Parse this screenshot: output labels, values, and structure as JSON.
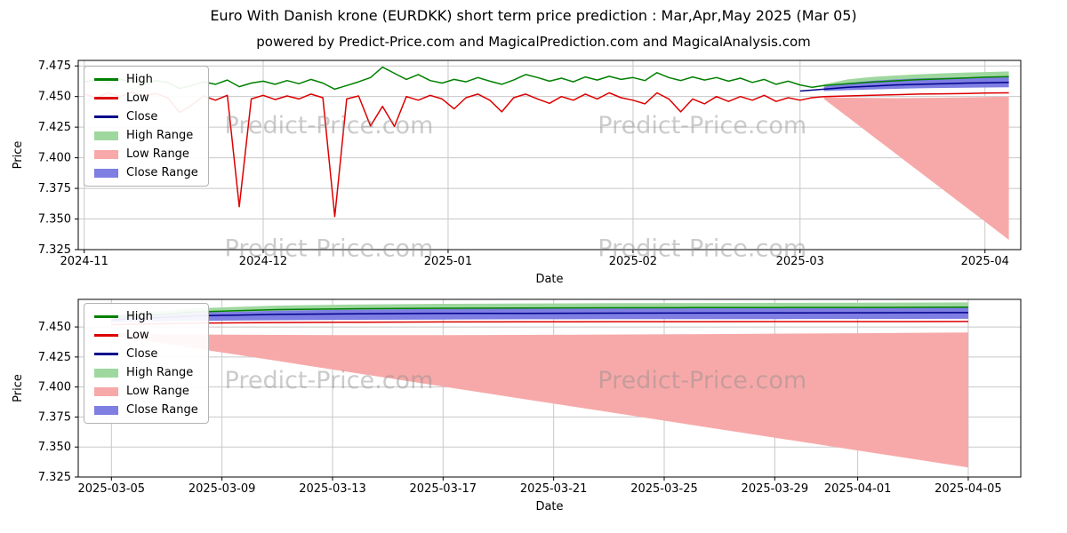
{
  "header": {
    "title": "Euro With Danish krone (EURDKK) short term price prediction : Mar,Apr,May 2025 (Mar 05)",
    "subtitle": "powered by Predict-Price.com and MagicalPrediction.com and MagicalAnalysis.com"
  },
  "watermark": {
    "text": "Predict-Price.com"
  },
  "colors": {
    "high": "#008000",
    "low": "#dd0000",
    "close": "#00008b",
    "high_range": "#9fd89f",
    "low_range": "#f7a9a9",
    "close_range": "#7e7ee3",
    "grid": "#c8c8c8",
    "axis": "#000000",
    "watermark": "#8c8c8c"
  },
  "legend": {
    "items": [
      {
        "label": "High",
        "key": "high",
        "type": "line"
      },
      {
        "label": "Low",
        "key": "low",
        "type": "line"
      },
      {
        "label": "Close",
        "key": "close",
        "type": "line"
      },
      {
        "label": "High Range",
        "key": "high_range",
        "type": "band"
      },
      {
        "label": "Low Range",
        "key": "low_range",
        "type": "band"
      },
      {
        "label": "Close Range",
        "key": "close_range",
        "type": "band"
      }
    ]
  },
  "chart_data": [
    {
      "type": "line",
      "title": "EURDKK history with forecast ranges",
      "xlabel": "Date",
      "ylabel": "Price",
      "xlim": [
        -1,
        157
      ],
      "ylim": [
        7.325,
        7.4795
      ],
      "grid": true,
      "legend_position": "upper left",
      "xticks": [
        {
          "pos": 0,
          "label": "2024-11"
        },
        {
          "pos": 30,
          "label": "2024-12"
        },
        {
          "pos": 61,
          "label": "2025-01"
        },
        {
          "pos": 92,
          "label": "2025-02"
        },
        {
          "pos": 120,
          "label": "2025-03"
        },
        {
          "pos": 151,
          "label": "2025-04"
        }
      ],
      "yticks": [
        {
          "pos": 7.475,
          "label": "7.475"
        },
        {
          "pos": 7.45,
          "label": "7.450"
        },
        {
          "pos": 7.425,
          "label": "7.425"
        },
        {
          "pos": 7.4,
          "label": "7.400"
        },
        {
          "pos": 7.375,
          "label": "7.375"
        },
        {
          "pos": 7.35,
          "label": "7.350"
        },
        {
          "pos": 7.325,
          "label": "7.325"
        }
      ],
      "series": [
        {
          "name": "High",
          "key": "high",
          "x": [
            0,
            2,
            4,
            6,
            8,
            10,
            12,
            14,
            16,
            18,
            20,
            22,
            24,
            26,
            28,
            30,
            32,
            34,
            36,
            38,
            40,
            42,
            44,
            46,
            48,
            50,
            52,
            54,
            56,
            58,
            60,
            62,
            64,
            66,
            68,
            70,
            72,
            74,
            76,
            78,
            80,
            82,
            84,
            86,
            88,
            90,
            92,
            94,
            96,
            98,
            100,
            102,
            104,
            106,
            108,
            110,
            112,
            114,
            116,
            118,
            120,
            122,
            124,
            128,
            132,
            136,
            140,
            144,
            148,
            151,
            155
          ],
          "y": [
            7.462,
            7.4635,
            7.461,
            7.464,
            7.4625,
            7.46,
            7.463,
            7.4615,
            7.4565,
            7.459,
            7.462,
            7.46,
            7.4635,
            7.458,
            7.461,
            7.4625,
            7.46,
            7.463,
            7.4605,
            7.464,
            7.461,
            7.456,
            7.459,
            7.462,
            7.4655,
            7.474,
            7.469,
            7.464,
            7.468,
            7.463,
            7.461,
            7.464,
            7.462,
            7.4655,
            7.4625,
            7.46,
            7.4635,
            7.468,
            7.4655,
            7.4625,
            7.465,
            7.462,
            7.466,
            7.4635,
            7.4665,
            7.464,
            7.4655,
            7.463,
            7.4695,
            7.4655,
            7.463,
            7.466,
            7.4635,
            7.4655,
            7.4625,
            7.465,
            7.4615,
            7.464,
            7.46,
            7.4625,
            7.4595,
            7.4575,
            7.459,
            7.4605,
            7.4618,
            7.4628,
            7.4638,
            7.4645,
            7.4652,
            7.4658,
            7.4662
          ]
        },
        {
          "name": "Low",
          "key": "low",
          "x": [
            0,
            2,
            4,
            6,
            8,
            10,
            12,
            14,
            16,
            18,
            20,
            22,
            24,
            26,
            28,
            30,
            32,
            34,
            36,
            38,
            40,
            42,
            44,
            46,
            48,
            50,
            52,
            54,
            56,
            58,
            60,
            62,
            64,
            66,
            68,
            70,
            72,
            74,
            76,
            78,
            80,
            82,
            84,
            86,
            88,
            90,
            92,
            94,
            96,
            98,
            100,
            102,
            104,
            106,
            108,
            110,
            112,
            114,
            116,
            118,
            120,
            122,
            124,
            128,
            132,
            136,
            140,
            144,
            148,
            151,
            155
          ],
          "y": [
            7.452,
            7.449,
            7.453,
            7.45,
            7.4535,
            7.4505,
            7.4525,
            7.449,
            7.437,
            7.443,
            7.4505,
            7.447,
            7.451,
            7.36,
            7.448,
            7.451,
            7.4475,
            7.4505,
            7.448,
            7.452,
            7.449,
            7.352,
            7.448,
            7.4505,
            7.426,
            7.442,
            7.4255,
            7.45,
            7.447,
            7.451,
            7.448,
            7.44,
            7.449,
            7.452,
            7.447,
            7.4375,
            7.449,
            7.452,
            7.448,
            7.4445,
            7.45,
            7.447,
            7.452,
            7.448,
            7.453,
            7.449,
            7.447,
            7.444,
            7.453,
            7.448,
            7.4375,
            7.448,
            7.444,
            7.45,
            7.446,
            7.45,
            7.447,
            7.451,
            7.446,
            7.449,
            7.447,
            7.449,
            7.45,
            7.4505,
            7.451,
            7.4515,
            7.452,
            7.4522,
            7.4525,
            7.4528,
            7.453
          ]
        },
        {
          "name": "Close",
          "key": "close",
          "x": [
            120,
            124,
            128,
            132,
            136,
            140,
            144,
            148,
            151,
            155
          ],
          "y": [
            7.4545,
            7.456,
            7.4575,
            7.4585,
            7.4595,
            7.46,
            7.4605,
            7.461,
            7.4612,
            7.4615
          ]
        }
      ],
      "bands": [
        {
          "name": "High Range",
          "key": "high_range",
          "x": [
            124,
            128,
            132,
            136,
            140,
            144,
            148,
            151,
            155
          ],
          "upper": [
            7.46,
            7.464,
            7.466,
            7.4672,
            7.4682,
            7.469,
            7.4696,
            7.47,
            7.4705
          ],
          "lower": [
            7.4575,
            7.4585,
            7.4595,
            7.4602,
            7.4608,
            7.4613,
            7.4617,
            7.462,
            7.4625
          ]
        },
        {
          "name": "Low Range",
          "key": "low_range",
          "x": [
            124,
            128,
            132,
            136,
            140,
            144,
            148,
            151,
            155
          ],
          "upper": [
            7.4495,
            7.449,
            7.4488,
            7.4487,
            7.4488,
            7.449,
            7.4493,
            7.4496,
            7.45
          ],
          "lower": [
            7.448,
            7.4332,
            7.4183,
            7.4035,
            7.3887,
            7.3738,
            7.359,
            7.3479,
            7.333
          ]
        },
        {
          "name": "Close Range",
          "key": "close_range",
          "x": [
            124,
            128,
            132,
            136,
            140,
            144,
            148,
            151,
            155
          ],
          "upper": [
            7.458,
            7.461,
            7.4628,
            7.464,
            7.4648,
            7.4653,
            7.4657,
            7.466,
            7.4663
          ],
          "lower": [
            7.4545,
            7.4552,
            7.4558,
            7.4563,
            7.4567,
            7.457,
            7.4572,
            7.4574,
            7.4576
          ]
        }
      ]
    },
    {
      "type": "line",
      "title": "EURDKK forecast detail Mar 05 - Apr 05 2025",
      "xlabel": "Date",
      "ylabel": "Price",
      "xlim": [
        2.8,
        36.9
      ],
      "ylim": [
        7.325,
        7.473
      ],
      "grid": true,
      "legend_position": "upper left",
      "xticks": [
        {
          "pos": 4,
          "label": "2025-03-05"
        },
        {
          "pos": 8,
          "label": "2025-03-09"
        },
        {
          "pos": 12,
          "label": "2025-03-13"
        },
        {
          "pos": 16,
          "label": "2025-03-17"
        },
        {
          "pos": 20,
          "label": "2025-03-21"
        },
        {
          "pos": 24,
          "label": "2025-03-25"
        },
        {
          "pos": 28,
          "label": "2025-03-29"
        },
        {
          "pos": 31,
          "label": "2025-04-01"
        },
        {
          "pos": 35,
          "label": "2025-04-05"
        }
      ],
      "yticks": [
        {
          "pos": 7.45,
          "label": "7.450"
        },
        {
          "pos": 7.425,
          "label": "7.425"
        },
        {
          "pos": 7.4,
          "label": "7.400"
        },
        {
          "pos": 7.375,
          "label": "7.375"
        },
        {
          "pos": 7.35,
          "label": "7.350"
        },
        {
          "pos": 7.325,
          "label": "7.325"
        }
      ],
      "series": [
        {
          "name": "High",
          "key": "high",
          "x": [
            4,
            7,
            10,
            13,
            16,
            19,
            22,
            25,
            28,
            31,
            35
          ],
          "y": [
            7.458,
            7.4625,
            7.4645,
            7.4652,
            7.4656,
            7.4658,
            7.466,
            7.4661,
            7.4662,
            7.4663,
            7.4665
          ]
        },
        {
          "name": "Low",
          "key": "low",
          "x": [
            4,
            7,
            10,
            13,
            16,
            19,
            22,
            25,
            28,
            31,
            35
          ],
          "y": [
            7.452,
            7.4532,
            7.4537,
            7.454,
            7.4542,
            7.4543,
            7.4544,
            7.4544,
            7.4545,
            7.4545,
            7.4546
          ]
        },
        {
          "name": "Close",
          "key": "close",
          "x": [
            4,
            7,
            10,
            13,
            16,
            19,
            22,
            25,
            28,
            31,
            35
          ],
          "y": [
            7.456,
            7.4592,
            7.4605,
            7.461,
            7.4613,
            7.4614,
            7.4615,
            7.4616,
            7.4617,
            7.4618,
            7.462
          ]
        }
      ],
      "bands": [
        {
          "name": "High Range",
          "key": "high_range",
          "x": [
            4,
            7,
            10,
            13,
            16,
            19,
            22,
            25,
            28,
            31,
            35
          ],
          "upper": [
            7.46,
            7.4655,
            7.4678,
            7.4688,
            7.4693,
            7.4696,
            7.4698,
            7.47,
            7.4701,
            7.4702,
            7.4705
          ],
          "lower": [
            7.456,
            7.4585,
            7.4598,
            7.4605,
            7.461,
            7.4613,
            7.4615,
            7.4616,
            7.4617,
            7.4618,
            7.462
          ]
        },
        {
          "name": "Low Range",
          "key": "low_range",
          "x": [
            4,
            7,
            10,
            13,
            16,
            19,
            22,
            25,
            28,
            31,
            35
          ],
          "upper": [
            7.4445,
            7.4438,
            7.4434,
            7.4432,
            7.4432,
            7.4434,
            7.4437,
            7.444,
            7.4444,
            7.4448,
            7.4455
          ],
          "lower": [
            7.443,
            7.4323,
            7.4217,
            7.411,
            7.4004,
            7.3897,
            7.3791,
            7.3684,
            7.3578,
            7.3471,
            7.333
          ]
        },
        {
          "name": "Close Range",
          "key": "close_range",
          "x": [
            4,
            7,
            10,
            13,
            16,
            19,
            22,
            25,
            28,
            31,
            35
          ],
          "upper": [
            7.458,
            7.4618,
            7.4636,
            7.4645,
            7.465,
            7.4653,
            7.4655,
            7.4656,
            7.4657,
            7.4658,
            7.466
          ],
          "lower": [
            7.454,
            7.4551,
            7.4556,
            7.456,
            7.4562,
            7.4564,
            7.4565,
            7.4566,
            7.4566,
            7.4567,
            7.4568
          ]
        }
      ]
    }
  ]
}
